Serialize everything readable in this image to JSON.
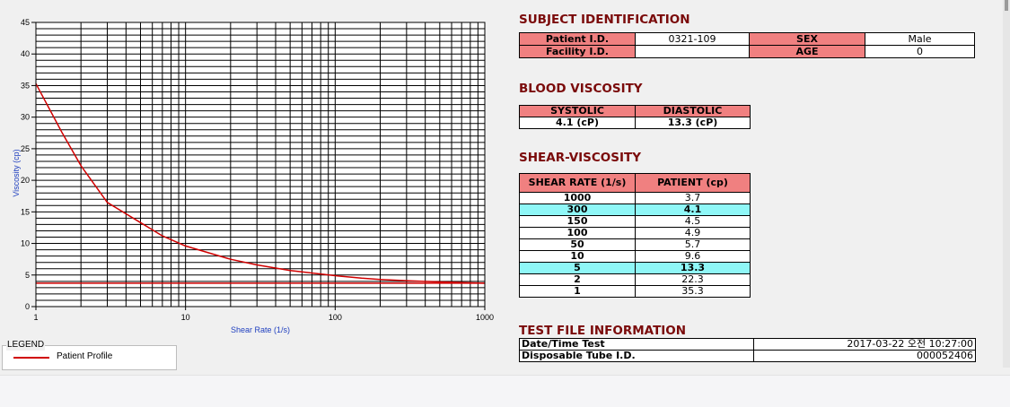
{
  "chart_data": {
    "type": "line",
    "title": "",
    "xlabel": "Shear Rate (1/s)",
    "ylabel": "Viscosity (cp)",
    "xscale": "log",
    "xlim": [
      1,
      1000
    ],
    "ylim": [
      0,
      45
    ],
    "grid": true,
    "x_tick_labels": [
      "1",
      "10",
      "100",
      "1000"
    ],
    "y_tick_labels": [
      "0",
      "5",
      "10",
      "15",
      "20",
      "25",
      "30",
      "35",
      "40",
      "45"
    ],
    "series": [
      {
        "name": "Patient Profile",
        "color": "#d10000",
        "x": [
          1,
          1.5,
          2,
          3,
          5,
          7,
          10,
          20,
          30,
          50,
          100,
          150,
          200,
          300,
          500,
          700,
          1000
        ],
        "y": [
          35.3,
          27.5,
          22.3,
          16.5,
          13.3,
          11.2,
          9.6,
          7.5,
          6.6,
          5.7,
          4.9,
          4.5,
          4.3,
          4.1,
          3.9,
          3.8,
          3.7
        ]
      },
      {
        "name": "",
        "color": "#d10000",
        "x": [
          1,
          1000
        ],
        "y": [
          3.7,
          3.7
        ]
      }
    ]
  },
  "legend": {
    "title": "LEGEND",
    "entries": [
      {
        "label": "Patient Profile",
        "color": "#d10000"
      }
    ]
  },
  "subject": {
    "title": "SUBJECT IDENTIFICATION",
    "patient_id_label": "Patient I.D.",
    "patient_id": "0321-109",
    "sex_label": "SEX",
    "sex": "Male",
    "facility_id_label": "Facility I.D.",
    "facility_id": "",
    "age_label": "AGE",
    "age": "0"
  },
  "blood_viscosity": {
    "title": "BLOOD VISCOSITY",
    "systolic_label": "SYSTOLIC",
    "diastolic_label": "DIASTOLIC",
    "systolic": "4.1 (cP)",
    "diastolic": "13.3 (cP)"
  },
  "shear_viscosity": {
    "title": "SHEAR-VISCOSITY",
    "col_rate": "SHEAR RATE (1/s)",
    "col_patient": "PATIENT (cp)",
    "rows": [
      {
        "rate": "1000",
        "value": "3.7",
        "highlight": false
      },
      {
        "rate": "300",
        "value": "4.1",
        "highlight": true
      },
      {
        "rate": "150",
        "value": "4.5",
        "highlight": false
      },
      {
        "rate": "100",
        "value": "4.9",
        "highlight": false
      },
      {
        "rate": "50",
        "value": "5.7",
        "highlight": false
      },
      {
        "rate": "10",
        "value": "9.6",
        "highlight": false
      },
      {
        "rate": "5",
        "value": "13.3",
        "highlight": true
      },
      {
        "rate": "2",
        "value": "22.3",
        "highlight": false
      },
      {
        "rate": "1",
        "value": "35.3",
        "highlight": false
      }
    ]
  },
  "test_file": {
    "title": "TEST FILE INFORMATION",
    "datetime_label": "Date/Time Test",
    "datetime": "2017-03-22  오전 10:27:00",
    "tube_label": "Disposable Tube I.D.",
    "tube_id": "000052406"
  }
}
